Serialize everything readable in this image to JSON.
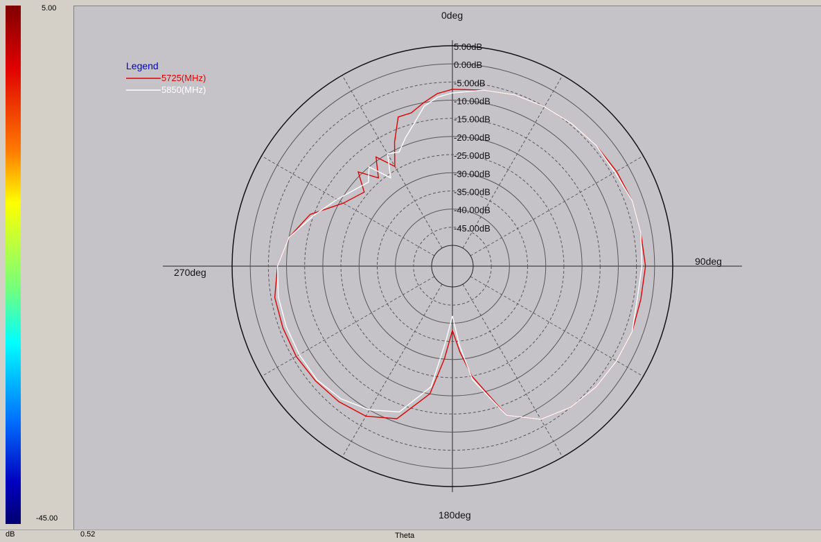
{
  "colorbar": {
    "max_label": "5.00",
    "min_label": "-45.00",
    "unit_label": "dB"
  },
  "bottom": {
    "value_label": "0.52",
    "axis_label": "Theta"
  },
  "colors": {
    "series1": "#e00000",
    "series2": "#ffffff",
    "legend_title": "#0000cc"
  },
  "chart_data": {
    "type": "polar-line",
    "angle_labels": [
      "0deg",
      "90deg",
      "180deg",
      "270deg"
    ],
    "radial_labels": [
      "5.00dB",
      "0.00dB",
      "-5.00dB",
      "-10.00dB",
      "-15.00dB",
      "-20.00dB",
      "-25.00dB",
      "-30.00dB",
      "-35.00dB",
      "-40.00dB",
      "-45.00dB"
    ],
    "r_range_db": [
      -50,
      5
    ],
    "legend": {
      "title": "Legend",
      "position": "top-left"
    },
    "theta_deg": [
      0,
      10,
      20,
      30,
      40,
      50,
      60,
      70,
      80,
      90,
      100,
      110,
      120,
      130,
      140,
      150,
      160,
      170,
      175,
      180,
      185,
      190,
      200,
      210,
      220,
      230,
      240,
      250,
      260,
      270,
      280,
      290,
      300,
      310,
      315,
      320,
      325,
      330,
      335,
      340,
      345,
      350,
      355
    ],
    "series": [
      {
        "name": "5725(MHz)",
        "values_db": [
          -7,
          -6.5,
          -5.5,
          -5,
          -4.5,
          -4,
          -3.5,
          -3,
          -3,
          -2.5,
          -3,
          -3,
          -3.5,
          -4,
          -5,
          -7,
          -12,
          -25,
          -32,
          -38,
          -30,
          -20,
          -11,
          -8,
          -7,
          -6.5,
          -6,
          -6,
          -6,
          -7.5,
          -10,
          -14,
          -21,
          -24,
          -19,
          -24,
          -19,
          -24,
          -18,
          -12,
          -12,
          -10,
          -8
        ]
      },
      {
        "name": "5850(MHz)",
        "values_db": [
          -8,
          -6.5,
          -5.5,
          -5,
          -4.5,
          -4,
          -4,
          -3,
          -3,
          -3.5,
          -4,
          -3,
          -3.5,
          -4,
          -5,
          -7,
          -12,
          -24,
          -34,
          -42,
          -35,
          -22,
          -13,
          -10,
          -8,
          -7,
          -7,
          -7,
          -7,
          -7.5,
          -10,
          -15,
          -19,
          -22,
          -23,
          -20,
          -26,
          -20,
          -21,
          -18,
          -15,
          -11,
          -9
        ]
      }
    ]
  }
}
